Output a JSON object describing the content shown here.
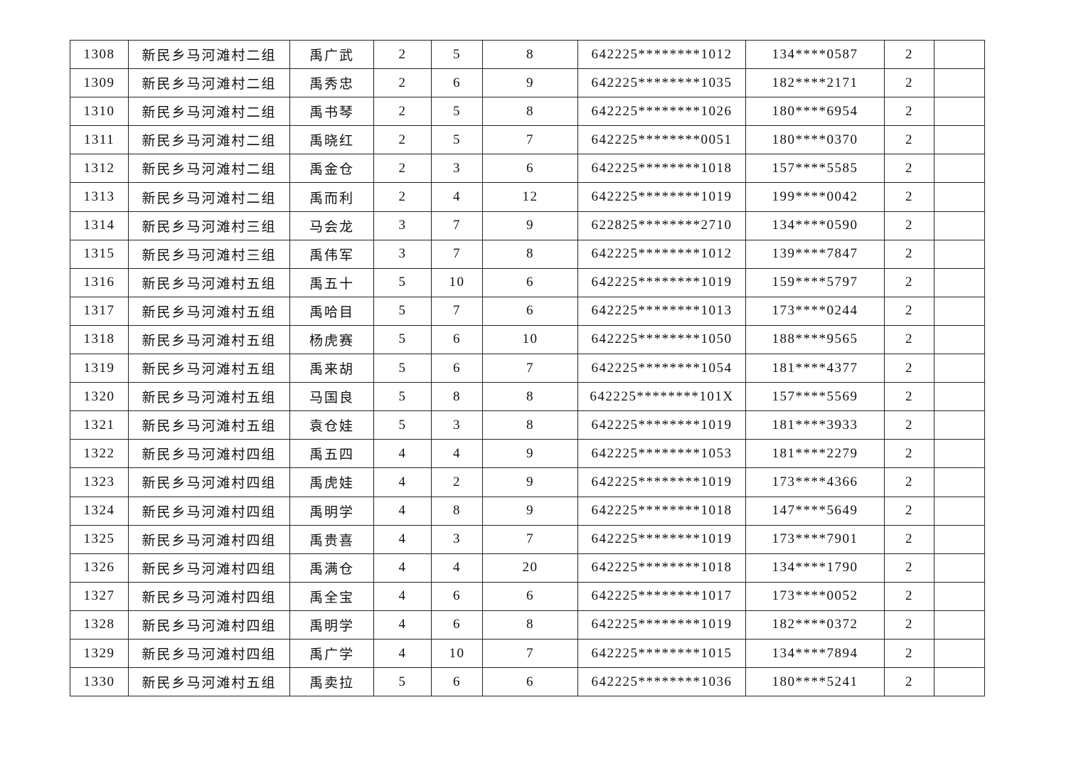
{
  "table": {
    "rows": [
      [
        "1308",
        "新民乡马河滩村二组",
        "禹广武",
        "2",
        "5",
        "8",
        "642225********1012",
        "134****0587",
        "2",
        ""
      ],
      [
        "1309",
        "新民乡马河滩村二组",
        "禹秀忠",
        "2",
        "6",
        "9",
        "642225********1035",
        "182****2171",
        "2",
        ""
      ],
      [
        "1310",
        "新民乡马河滩村二组",
        "禹书琴",
        "2",
        "5",
        "8",
        "642225********1026",
        "180****6954",
        "2",
        ""
      ],
      [
        "1311",
        "新民乡马河滩村二组",
        "禹晓红",
        "2",
        "5",
        "7",
        "642225********0051",
        "180****0370",
        "2",
        ""
      ],
      [
        "1312",
        "新民乡马河滩村二组",
        "禹金仓",
        "2",
        "3",
        "6",
        "642225********1018",
        "157****5585",
        "2",
        ""
      ],
      [
        "1313",
        "新民乡马河滩村二组",
        "禹而利",
        "2",
        "4",
        "12",
        "642225********1019",
        "199****0042",
        "2",
        ""
      ],
      [
        "1314",
        "新民乡马河滩村三组",
        "马会龙",
        "3",
        "7",
        "9",
        "622825********2710",
        "134****0590",
        "2",
        ""
      ],
      [
        "1315",
        "新民乡马河滩村三组",
        "禹伟军",
        "3",
        "7",
        "8",
        "642225********1012",
        "139****7847",
        "2",
        ""
      ],
      [
        "1316",
        "新民乡马河滩村五组",
        "禹五十",
        "5",
        "10",
        "6",
        "642225********1019",
        "159****5797",
        "2",
        ""
      ],
      [
        "1317",
        "新民乡马河滩村五组",
        "禹哈目",
        "5",
        "7",
        "6",
        "642225********1013",
        "173****0244",
        "2",
        ""
      ],
      [
        "1318",
        "新民乡马河滩村五组",
        "杨虎赛",
        "5",
        "6",
        "10",
        "642225********1050",
        "188****9565",
        "2",
        ""
      ],
      [
        "1319",
        "新民乡马河滩村五组",
        "禹来胡",
        "5",
        "6",
        "7",
        "642225********1054",
        "181****4377",
        "2",
        ""
      ],
      [
        "1320",
        "新民乡马河滩村五组",
        "马国良",
        "5",
        "8",
        "8",
        "642225********101X",
        "157****5569",
        "2",
        ""
      ],
      [
        "1321",
        "新民乡马河滩村五组",
        "袁仓娃",
        "5",
        "3",
        "8",
        "642225********1019",
        "181****3933",
        "2",
        ""
      ],
      [
        "1322",
        "新民乡马河滩村四组",
        "禹五四",
        "4",
        "4",
        "9",
        "642225********1053",
        "181****2279",
        "2",
        ""
      ],
      [
        "1323",
        "新民乡马河滩村四组",
        "禹虎娃",
        "4",
        "2",
        "9",
        "642225********1019",
        "173****4366",
        "2",
        ""
      ],
      [
        "1324",
        "新民乡马河滩村四组",
        "禹明学",
        "4",
        "8",
        "9",
        "642225********1018",
        "147****5649",
        "2",
        ""
      ],
      [
        "1325",
        "新民乡马河滩村四组",
        "禹贵喜",
        "4",
        "3",
        "7",
        "642225********1019",
        "173****7901",
        "2",
        ""
      ],
      [
        "1326",
        "新民乡马河滩村四组",
        "禹满仓",
        "4",
        "4",
        "20",
        "642225********1018",
        "134****1790",
        "2",
        ""
      ],
      [
        "1327",
        "新民乡马河滩村四组",
        "禹全宝",
        "4",
        "6",
        "6",
        "642225********1017",
        "173****0052",
        "2",
        ""
      ],
      [
        "1328",
        "新民乡马河滩村四组",
        "禹明学",
        "4",
        "6",
        "8",
        "642225********1019",
        "182****0372",
        "2",
        ""
      ],
      [
        "1329",
        "新民乡马河滩村四组",
        "禹广学",
        "4",
        "10",
        "7",
        "642225********1015",
        "134****7894",
        "2",
        ""
      ],
      [
        "1330",
        "新民乡马河滩村五组",
        "禹卖拉",
        "5",
        "6",
        "6",
        "642225********1036",
        "180****5241",
        "2",
        ""
      ]
    ]
  }
}
